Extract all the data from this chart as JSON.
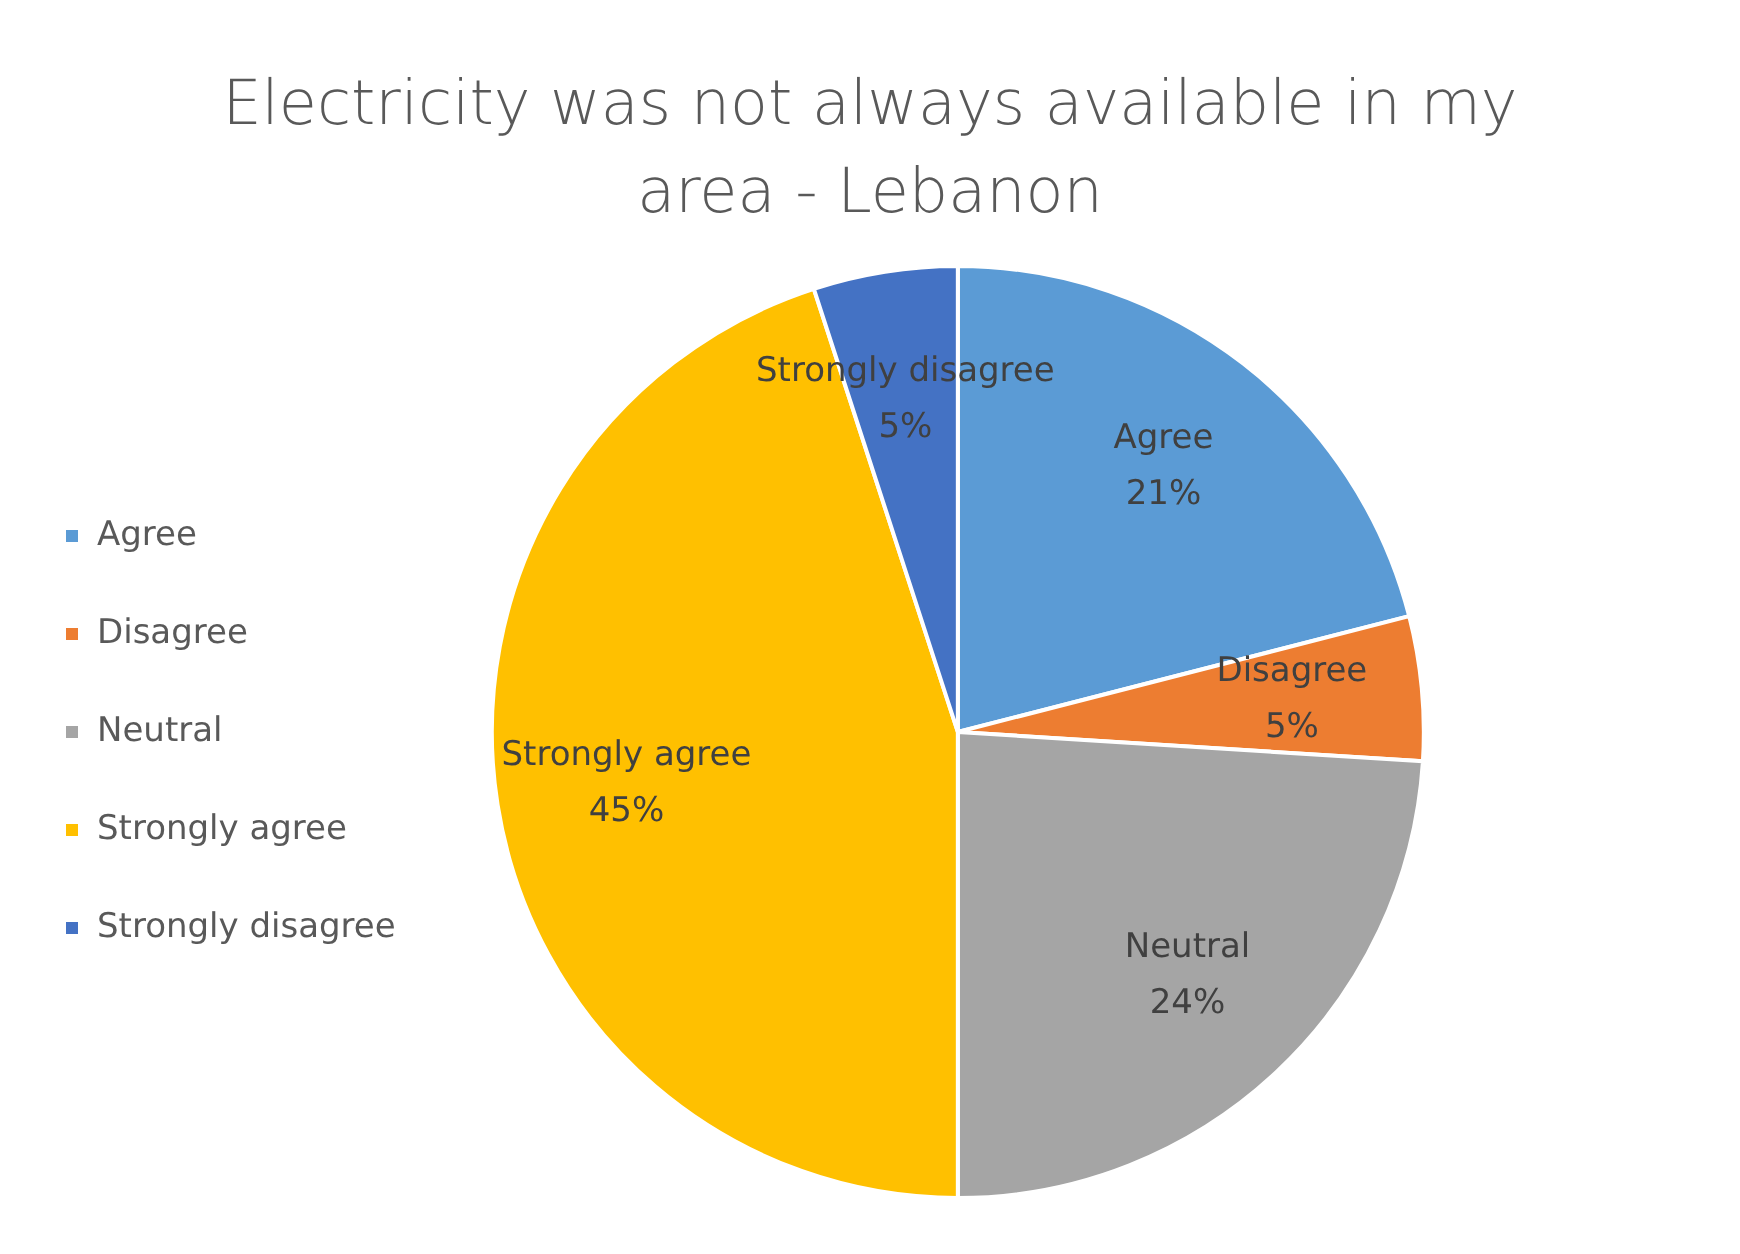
{
  "chart_data": {
    "type": "pie",
    "title": "Electricity was not always available in my area - Lebanon",
    "categories": [
      "Agree",
      "Disagree",
      "Neutral",
      "Strongly agree",
      "Strongly disagree"
    ],
    "values": [
      21,
      5,
      24,
      45,
      5
    ],
    "value_labels": [
      "21%",
      "5%",
      "24%",
      "45%",
      "5%"
    ],
    "colors": [
      "#5b9bd5",
      "#ed7d31",
      "#a5a5a5",
      "#ffc000",
      "#4472c4"
    ],
    "legend": "left"
  }
}
